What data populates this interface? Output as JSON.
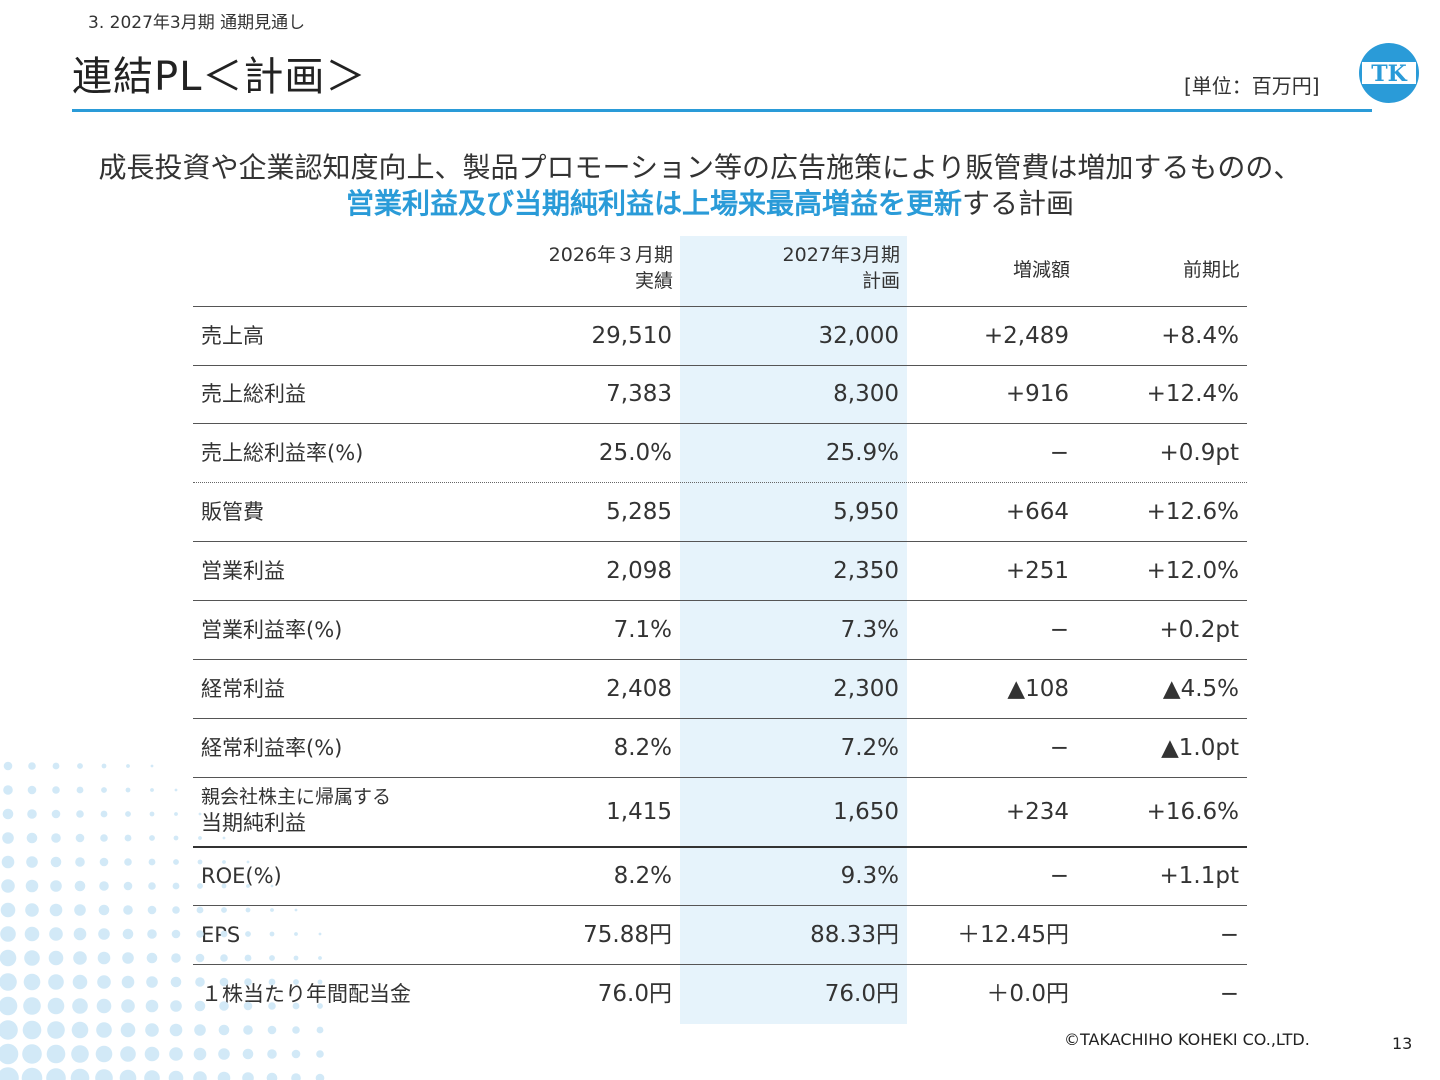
{
  "header": {
    "section": "3.  2027年3月期 通期見通し",
    "title": "連結PL＜計画＞",
    "unit": "[単位：百万円]",
    "logo_text": "TK"
  },
  "lead": {
    "line1": "成長投資や企業認知度向上、製品プロモーション等の広告施策により販管費は増加するものの、",
    "line2_highlight": "営業利益及び当期純利益は上場来最高増益を更新",
    "line2_rest": "する計画"
  },
  "colors": {
    "accent": "#2a9bd8",
    "highlight_column": "#e6f3fb"
  },
  "table": {
    "columns": [
      {
        "line1": "2026年３月期",
        "line2": "実績"
      },
      {
        "line1": "2027年3月期",
        "line2": "計画"
      },
      {
        "line1": "増減額",
        "line2": ""
      },
      {
        "line1": "前期比",
        "line2": ""
      }
    ],
    "rows": [
      {
        "label": "売上高",
        "label2": "",
        "a": "29,510",
        "b": "32,000",
        "c": "+2,489",
        "d": "+8.4%"
      },
      {
        "label": "売上総利益",
        "label2": "",
        "a": "7,383",
        "b": "8,300",
        "c": "+916",
        "d": "+12.4%"
      },
      {
        "label": "売上総利益率(%)",
        "label2": "",
        "a": "25.0%",
        "b": "25.9%",
        "c": "−",
        "d": "+0.9pt"
      },
      {
        "label": "販管費",
        "label2": "",
        "a": "5,285",
        "b": "5,950",
        "c": "+664",
        "d": "+12.6%"
      },
      {
        "label": "営業利益",
        "label2": "",
        "a": "2,098",
        "b": "2,350",
        "c": "+251",
        "d": "+12.0%"
      },
      {
        "label": "営業利益率(%)",
        "label2": "",
        "a": "7.1%",
        "b": "7.3%",
        "c": "−",
        "d": "+0.2pt"
      },
      {
        "label": "経常利益",
        "label2": "",
        "a": "2,408",
        "b": "2,300",
        "c": "▲108",
        "d": "▲4.5%"
      },
      {
        "label": "経常利益率(%)",
        "label2": "",
        "a": "8.2%",
        "b": "7.2%",
        "c": "−",
        "d": "▲1.0pt"
      },
      {
        "label": "親会社株主に帰属する",
        "label2": "当期純利益",
        "a": "1,415",
        "b": "1,650",
        "c": "+234",
        "d": "+16.6%"
      },
      {
        "label": "ROE(%)",
        "label2": "",
        "a": "8.2%",
        "b": "9.3%",
        "c": "−",
        "d": "+1.1pt"
      },
      {
        "label": "EPS",
        "label2": "",
        "a": "75.88円",
        "b": "88.33円",
        "c": "＋12.45円",
        "d": "−"
      },
      {
        "label": "１株当たり年間配当金",
        "label2": "",
        "a": "76.0円",
        "b": "76.0円",
        "c": "＋0.0円",
        "d": "−"
      }
    ]
  },
  "footer": {
    "copyright": "©TAKACHIHO KOHEKI CO.,LTD.",
    "page": "13"
  }
}
